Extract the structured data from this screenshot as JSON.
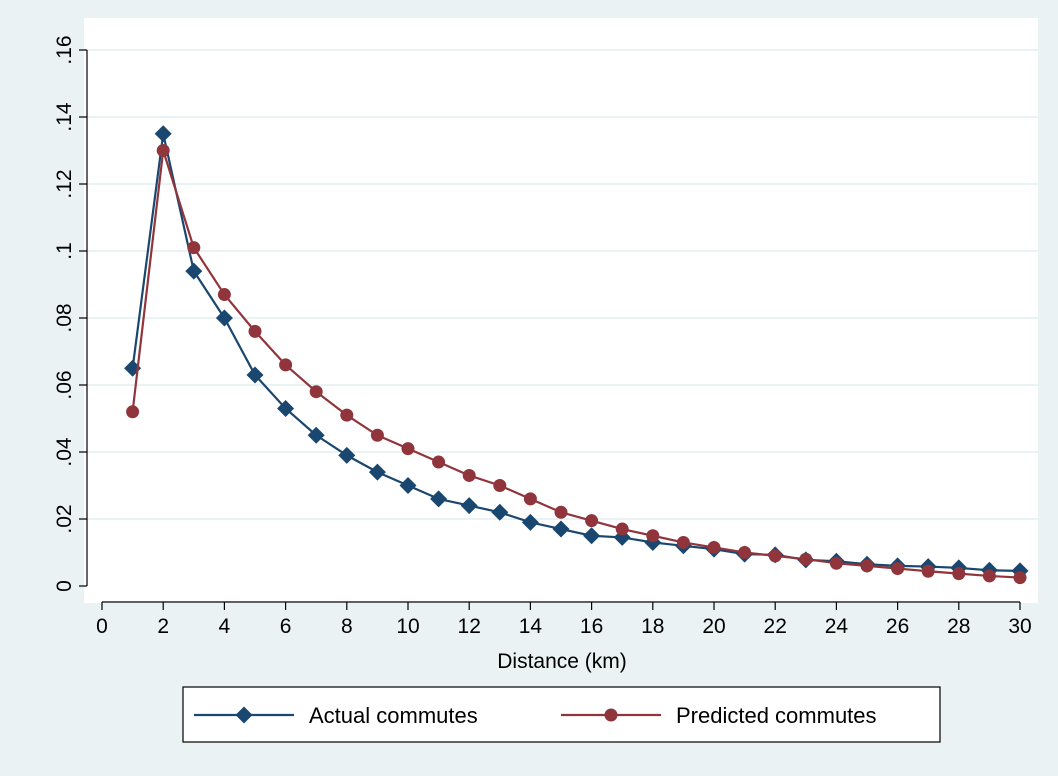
{
  "chart_data": {
    "type": "line",
    "title": "",
    "xlabel": "Distance (km)",
    "ylabel": "",
    "xlim": [
      0,
      30
    ],
    "ylim": [
      0,
      0.16
    ],
    "x_ticks": [
      0,
      2,
      4,
      6,
      8,
      10,
      12,
      14,
      16,
      18,
      20,
      22,
      24,
      26,
      28,
      30
    ],
    "y_ticks": [
      0,
      0.02,
      0.04,
      0.06,
      0.08,
      0.1,
      0.12,
      0.14,
      0.16
    ],
    "y_tick_labels": [
      "0",
      ".02",
      ".04",
      ".06",
      ".08",
      ".1",
      ".12",
      ".14",
      ".16"
    ],
    "grid": true,
    "legend_position": "bottom",
    "x": [
      1,
      2,
      3,
      4,
      5,
      6,
      7,
      8,
      9,
      10,
      11,
      12,
      13,
      14,
      15,
      16,
      17,
      18,
      19,
      20,
      21,
      22,
      23,
      24,
      25,
      26,
      27,
      28,
      29,
      30
    ],
    "series": [
      {
        "name": "Actual commutes",
        "color": "#1a476f",
        "marker": "diamond",
        "values": [
          0.065,
          0.135,
          0.094,
          0.08,
          0.063,
          0.053,
          0.045,
          0.039,
          0.034,
          0.03,
          0.026,
          0.024,
          0.022,
          0.019,
          0.017,
          0.015,
          0.0145,
          0.013,
          0.012,
          0.011,
          0.0095,
          0.0093,
          0.0078,
          0.0074,
          0.0065,
          0.006,
          0.0058,
          0.0054,
          0.0047,
          0.0045
        ]
      },
      {
        "name": "Predicted commutes",
        "color": "#90353b",
        "marker": "circle",
        "values": [
          0.052,
          0.13,
          0.101,
          0.087,
          0.076,
          0.066,
          0.058,
          0.051,
          0.045,
          0.041,
          0.037,
          0.033,
          0.03,
          0.026,
          0.022,
          0.0195,
          0.017,
          0.015,
          0.013,
          0.0115,
          0.01,
          0.009,
          0.008,
          0.0068,
          0.006,
          0.0052,
          0.0044,
          0.0037,
          0.003,
          0.0025
        ]
      }
    ]
  }
}
